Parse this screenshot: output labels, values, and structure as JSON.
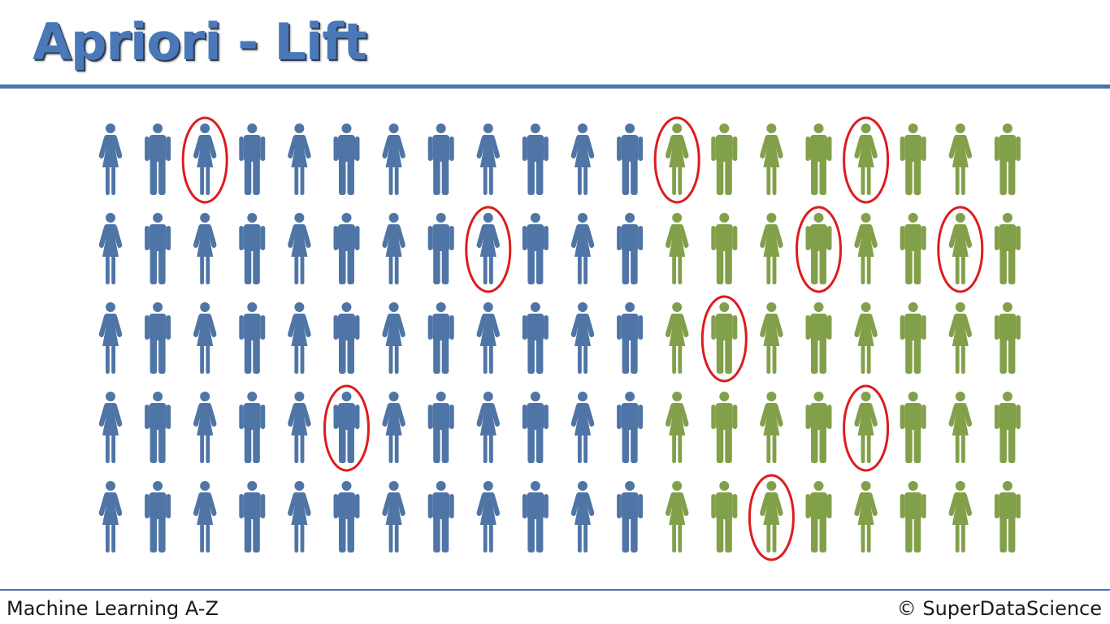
{
  "title": "Apriori - Lift",
  "footer": {
    "course": "Machine Learning A-Z",
    "copyright": "© SuperDataScience"
  },
  "colors": {
    "title": "#4a78b8",
    "rule": "#4a74b0",
    "blue_figure": "#4f75a6",
    "green_figure": "#82a04a",
    "highlight": "#dd1c1c"
  },
  "icons": {
    "female": "female-person-icon",
    "male": "male-person-icon",
    "highlight": "red-circle-highlight"
  },
  "grid": {
    "rows": [
      [
        "F",
        "M",
        "F",
        "M",
        "F",
        "M",
        "F",
        "M",
        "F",
        "M",
        "F",
        "M",
        "F",
        "M",
        "F",
        "M",
        "F",
        "M",
        "F",
        "M"
      ],
      [
        "F",
        "M",
        "F",
        "M",
        "F",
        "M",
        "F",
        "M",
        "F",
        "M",
        "F",
        "M",
        "F",
        "M",
        "F",
        "M",
        "F",
        "M",
        "F",
        "M"
      ],
      [
        "F",
        "M",
        "F",
        "M",
        "F",
        "M",
        "F",
        "M",
        "F",
        "M",
        "F",
        "M",
        "F",
        "M",
        "F",
        "M",
        "F",
        "M",
        "F",
        "M"
      ],
      [
        "F",
        "M",
        "F",
        "M",
        "F",
        "M",
        "F",
        "M",
        "F",
        "M",
        "F",
        "M",
        "F",
        "M",
        "F",
        "M",
        "F",
        "M",
        "F",
        "M"
      ],
      [
        "F",
        "M",
        "F",
        "M",
        "F",
        "M",
        "F",
        "M",
        "F",
        "M",
        "F",
        "M",
        "F",
        "M",
        "F",
        "M",
        "F",
        "M",
        "F",
        "M"
      ]
    ],
    "blue_columns": 12,
    "green_columns": 8,
    "circled": [
      [
        0,
        2
      ],
      [
        0,
        12
      ],
      [
        0,
        16
      ],
      [
        1,
        8
      ],
      [
        1,
        15
      ],
      [
        1,
        18
      ],
      [
        2,
        13
      ],
      [
        3,
        5
      ],
      [
        3,
        16
      ],
      [
        4,
        14
      ]
    ]
  }
}
